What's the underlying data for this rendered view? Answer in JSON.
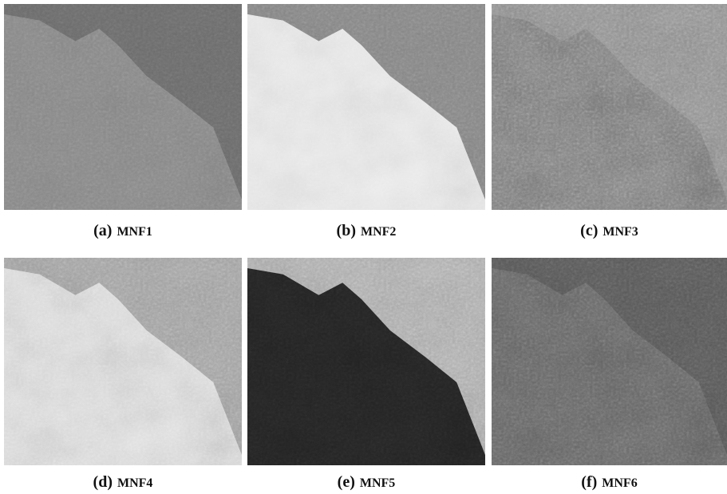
{
  "panels": [
    {
      "label": "(a)",
      "name": "MNF1"
    },
    {
      "label": "(b)",
      "name": "MNF2"
    },
    {
      "label": "(c)",
      "name": "MNF3"
    },
    {
      "label": "(d)",
      "name": "MNF4"
    },
    {
      "label": "(e)",
      "name": "MNF5"
    },
    {
      "label": "(f)",
      "name": "MNF6"
    }
  ]
}
